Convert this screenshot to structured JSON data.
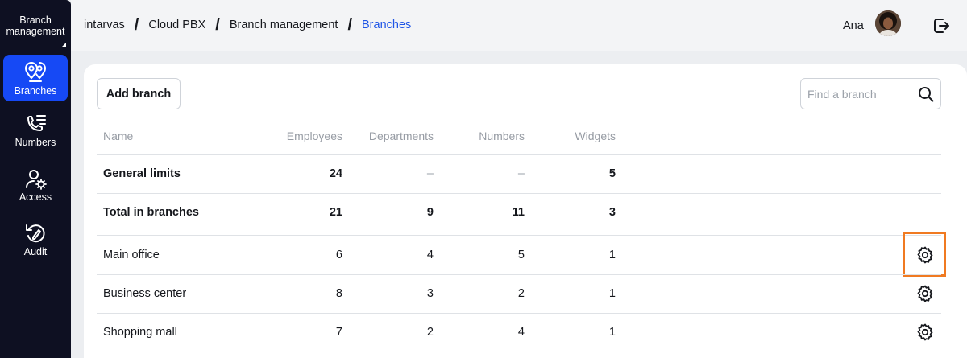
{
  "sidebar": {
    "header": {
      "line1": "Branch",
      "line2": "management"
    },
    "items": [
      {
        "label": "Branches",
        "icon": "branches-pin-icon",
        "active": true
      },
      {
        "label": "Numbers",
        "icon": "phone-list-icon",
        "active": false
      },
      {
        "label": "Access",
        "icon": "user-gear-icon",
        "active": false
      },
      {
        "label": "Audit",
        "icon": "audit-history-icon",
        "active": false
      }
    ]
  },
  "breadcrumb": [
    "intarvas",
    "Cloud PBX",
    "Branch management",
    "Branches"
  ],
  "user": {
    "name": "Ana",
    "avatar_icon": "user-avatar"
  },
  "toolbar": {
    "add_label": "Add branch",
    "search_placeholder": "Find a branch"
  },
  "table": {
    "columns": [
      "Name",
      "Employees",
      "Departments",
      "Numbers",
      "Widgets"
    ],
    "summary_rows": [
      {
        "name": "General limits",
        "employees": "24",
        "departments": "–",
        "numbers": "–",
        "widgets": "5"
      },
      {
        "name": "Total in branches",
        "employees": "21",
        "departments": "9",
        "numbers": "11",
        "widgets": "3"
      }
    ],
    "rows": [
      {
        "name": "Main office",
        "employees": "6",
        "departments": "4",
        "numbers": "5",
        "widgets": "1"
      },
      {
        "name": "Business center",
        "employees": "8",
        "departments": "3",
        "numbers": "2",
        "widgets": "1"
      },
      {
        "name": "Shopping mall",
        "employees": "7",
        "departments": "2",
        "numbers": "4",
        "widgets": "1"
      }
    ]
  },
  "colors": {
    "sidebar_bg": "#0e1022",
    "accent": "#1649f5",
    "breadcrumb_current": "#1f55e6",
    "highlight": "#f07a21"
  }
}
